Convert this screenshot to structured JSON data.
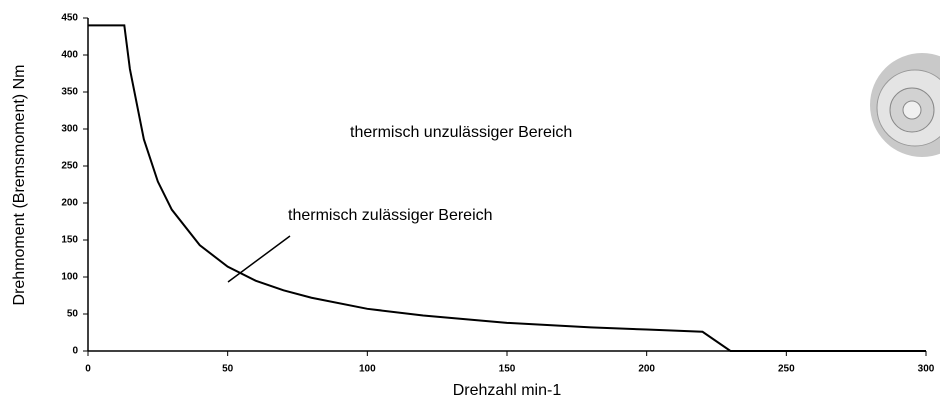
{
  "chart_data": {
    "type": "line",
    "x_label": "Drehzahl min-1",
    "y_label": "Drehmoment (Bremsmoment) Nm",
    "annotations": [
      "thermisch unzulässiger Bereich",
      "thermisch zulässiger Bereich"
    ],
    "x": [
      0,
      13,
      15,
      20,
      25,
      30,
      40,
      50,
      60,
      70,
      80,
      100,
      120,
      150,
      180,
      200,
      220,
      230,
      300
    ],
    "series": [
      {
        "color": "#000000",
        "values": [
          440,
          440,
          381,
          286,
          229,
          191,
          143,
          114,
          95,
          82,
          72,
          57,
          48,
          38,
          32,
          29,
          26,
          0,
          0
        ]
      }
    ],
    "xlim": [
      0,
      300
    ],
    "xticks": [
      0,
      50,
      100,
      150,
      200,
      250,
      300
    ],
    "ylim": [
      0,
      450
    ],
    "yticks": [
      0,
      50,
      100,
      150,
      200,
      250,
      300,
      350,
      400,
      450
    ],
    "grid": false
  }
}
